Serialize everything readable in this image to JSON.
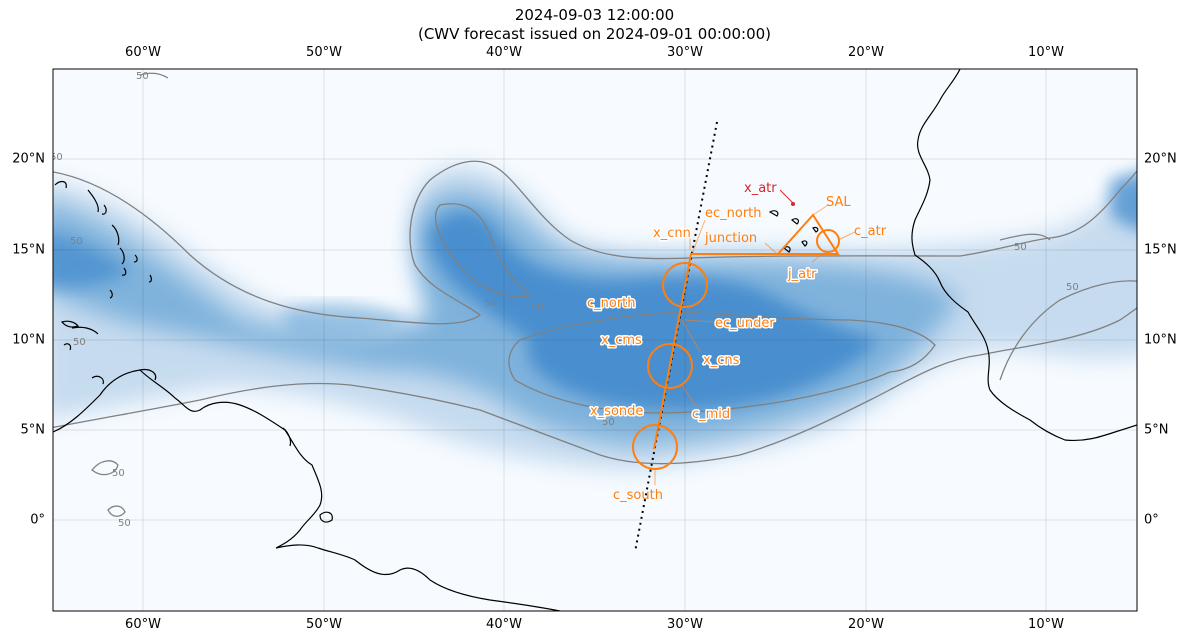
{
  "title": {
    "line1": "2024-09-03 12:00:00",
    "line2": "(CWV forecast issued on 2024-09-01 00:00:00)"
  },
  "axes": {
    "x_ticks": [
      "60°W",
      "50°W",
      "40°W",
      "30°W",
      "20°W",
      "10°W"
    ],
    "y_ticks": [
      "20°N",
      "15°N",
      "10°N",
      "5°N",
      "0°"
    ],
    "lon_range": [
      -65,
      -5
    ],
    "lat_range": [
      -5,
      25
    ],
    "grid": true
  },
  "contour_level_label": "50",
  "colors": {
    "flight_track": "#ff7f0e",
    "x_atr": "#d62728",
    "contour": "#808080",
    "coastline": "#000000",
    "cwv_high": "#4a8fcf",
    "cwv_low": "#f7fbff"
  },
  "labels": {
    "x_atr": "x_atr",
    "sal": "SAL",
    "ec_north": "ec_north",
    "x_cnn": "x_cnn",
    "junction": "junction",
    "c_atr": "c_atr",
    "j_atr": "j_atr",
    "c_north": "c_north",
    "ec_under": "ec_under",
    "x_cms": "x_cms",
    "x_cns": "x_cns",
    "x_sonde": "x_sonde",
    "c_mid": "c_mid",
    "c_south": "c_south"
  }
}
